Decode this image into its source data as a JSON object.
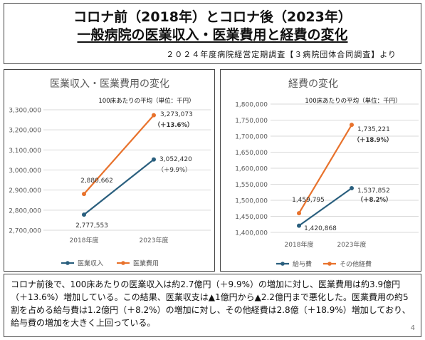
{
  "header": {
    "title_line1": "コロナ前（2018年）とコロナ後（2023年）",
    "title_line2": "一般病院の医業収入・医業費用と経費の変化",
    "source": "２０２４年度病院経営定期調査【３病院団体合同調査】より"
  },
  "colors": {
    "blue": "#2a5f7e",
    "orange": "#e8722c",
    "grid": "#d9d9d9",
    "axis_text": "#595959"
  },
  "chart_data": [
    {
      "type": "line",
      "title": "医業収入・医業費用の変化",
      "subtitle": "100床あたりの平均（単位：千円）",
      "categories": [
        "2018年度",
        "2023年度"
      ],
      "ylim": [
        2700000,
        3300000
      ],
      "yticks": [
        2700000,
        2800000,
        2900000,
        3000000,
        3100000,
        3200000,
        3300000
      ],
      "ytick_labels": [
        "2,700,000",
        "2,800,000",
        "2,900,000",
        "3,000,000",
        "3,100,000",
        "3,200,000",
        "3,300,000"
      ],
      "grid": true,
      "legend_position": "bottom",
      "series": [
        {
          "name": "医業収入",
          "values": [
            2777553,
            3052420
          ],
          "labels": [
            "2,777,553",
            "3,052,420"
          ],
          "change": "（＋9.9%）",
          "color": "#2a5f7e"
        },
        {
          "name": "医業費用",
          "values": [
            2880662,
            3273073
          ],
          "labels": [
            "2,880,662",
            "3,273,073"
          ],
          "change": "（＋13.6%）",
          "color": "#e8722c"
        }
      ]
    },
    {
      "type": "line",
      "title": "経費の変化",
      "subtitle": "100床あたりの平均（単位：千円）",
      "categories": [
        "2018年度",
        "2023年度"
      ],
      "ylim": [
        1400000,
        1800000
      ],
      "yticks": [
        1400000,
        1450000,
        1500000,
        1550000,
        1600000,
        1650000,
        1700000,
        1750000,
        1800000
      ],
      "ytick_labels": [
        "1,400,000",
        "1,450,000",
        "1,500,000",
        "1,550,000",
        "1,600,000",
        "1,650,000",
        "1,700,000",
        "1,750,000",
        "1,800,000"
      ],
      "grid": true,
      "legend_position": "bottom",
      "series": [
        {
          "name": "給与費",
          "values": [
            1420868,
            1537852
          ],
          "labels": [
            "1,420,868",
            "1,537,852"
          ],
          "change": "（＋8.2%）",
          "color": "#2a5f7e"
        },
        {
          "name": "その他経費",
          "values": [
            1459795,
            1735221
          ],
          "labels": [
            "1,459,795",
            "1,735,221"
          ],
          "change": "（＋18.9%）",
          "color": "#e8722c"
        }
      ]
    }
  ],
  "footer": {
    "text": "コロナ前後で、100床あたりの医業収入は約2.7億円（＋9.9%）の増加に対し、医業費用は約3.9億円（＋13.6%）増加している。この結果、医業収支は▲1億円から▲2.2億円まで悪化した。医業費用の約5割を占める給与費は1.2億円（＋8.2%）の増加に対し、その他経費は2.8億（＋18.9%）増加しており、給与費の増加を大きく上回っている。",
    "page_number": "4"
  }
}
